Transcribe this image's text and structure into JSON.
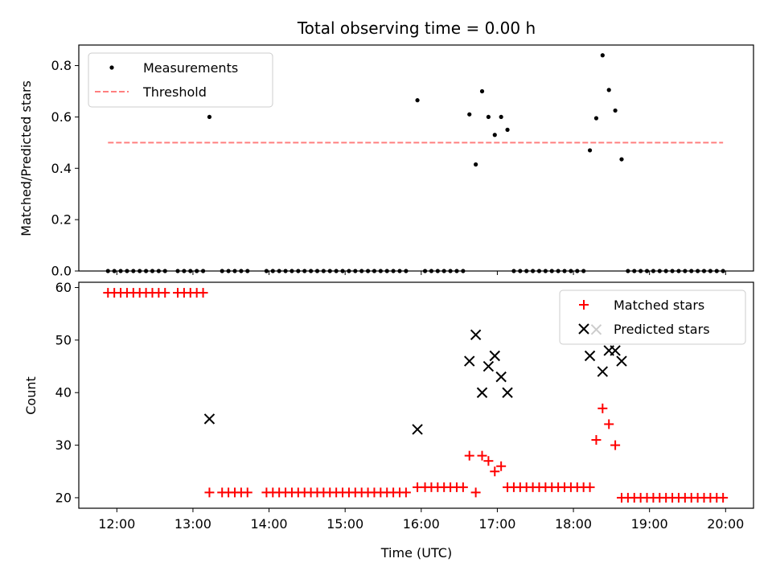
{
  "chart_data": [
    {
      "type": "scatter",
      "title": "Total observing time = 0.00 h",
      "xlabel": "",
      "ylabel": "Matched/Predicted stars",
      "xlim": [
        "11:30",
        "20:22"
      ],
      "ylim": [
        0,
        0.88
      ],
      "yticks": [
        "0.0",
        "0.2",
        "0.4",
        "0.6",
        "0.8"
      ],
      "legend_position": "top-left",
      "legend": {
        "measurements": "Measurements",
        "threshold": "Threshold"
      },
      "series": [
        {
          "name": "Measurements",
          "color": "#000000",
          "marker": "dot",
          "points": [
            [
              "11:53",
              0
            ],
            [
              "11:58",
              0
            ],
            [
              "12:03",
              0
            ],
            [
              "12:08",
              0
            ],
            [
              "12:13",
              0
            ],
            [
              "12:18",
              0
            ],
            [
              "12:23",
              0
            ],
            [
              "12:28",
              0
            ],
            [
              "12:33",
              0
            ],
            [
              "12:38",
              0
            ],
            [
              "12:48",
              0
            ],
            [
              "12:53",
              0
            ],
            [
              "12:58",
              0
            ],
            [
              "13:03",
              0
            ],
            [
              "13:08",
              0
            ],
            [
              "13:13",
              0.6
            ],
            [
              "13:23",
              0
            ],
            [
              "13:28",
              0
            ],
            [
              "13:33",
              0
            ],
            [
              "13:38",
              0
            ],
            [
              "13:43",
              0
            ],
            [
              "13:58",
              0
            ],
            [
              "14:03",
              0
            ],
            [
              "14:08",
              0
            ],
            [
              "14:13",
              0
            ],
            [
              "14:18",
              0
            ],
            [
              "14:23",
              0
            ],
            [
              "14:28",
              0
            ],
            [
              "14:33",
              0
            ],
            [
              "14:38",
              0
            ],
            [
              "14:43",
              0
            ],
            [
              "14:48",
              0
            ],
            [
              "14:53",
              0
            ],
            [
              "14:58",
              0
            ],
            [
              "15:03",
              0
            ],
            [
              "15:08",
              0
            ],
            [
              "15:13",
              0
            ],
            [
              "15:18",
              0
            ],
            [
              "15:23",
              0
            ],
            [
              "15:28",
              0
            ],
            [
              "15:33",
              0
            ],
            [
              "15:38",
              0
            ],
            [
              "15:43",
              0
            ],
            [
              "15:48",
              0
            ],
            [
              "15:57",
              0.665
            ],
            [
              "16:03",
              0
            ],
            [
              "16:08",
              0
            ],
            [
              "16:13",
              0
            ],
            [
              "16:18",
              0
            ],
            [
              "16:23",
              0
            ],
            [
              "16:28",
              0
            ],
            [
              "16:33",
              0
            ],
            [
              "16:38",
              0.61
            ],
            [
              "16:43",
              0.415
            ],
            [
              "16:48",
              0.7
            ],
            [
              "16:53",
              0.6
            ],
            [
              "16:58",
              0.53
            ],
            [
              "17:03",
              0.6
            ],
            [
              "17:08",
              0.55
            ],
            [
              "17:13",
              0
            ],
            [
              "17:18",
              0
            ],
            [
              "17:23",
              0
            ],
            [
              "17:28",
              0
            ],
            [
              "17:33",
              0
            ],
            [
              "17:38",
              0
            ],
            [
              "17:43",
              0
            ],
            [
              "17:48",
              0
            ],
            [
              "17:53",
              0
            ],
            [
              "17:58",
              0
            ],
            [
              "18:03",
              0
            ],
            [
              "18:08",
              0
            ],
            [
              "18:13",
              0.47
            ],
            [
              "18:18",
              0.595
            ],
            [
              "18:23",
              0.84
            ],
            [
              "18:28",
              0.705
            ],
            [
              "18:33",
              0.625
            ],
            [
              "18:38",
              0.435
            ],
            [
              "18:43",
              0
            ],
            [
              "18:48",
              0
            ],
            [
              "18:53",
              0
            ],
            [
              "18:58",
              0
            ],
            [
              "19:03",
              0
            ],
            [
              "19:08",
              0
            ],
            [
              "19:13",
              0
            ],
            [
              "19:18",
              0
            ],
            [
              "19:23",
              0
            ],
            [
              "19:28",
              0
            ],
            [
              "19:33",
              0
            ],
            [
              "19:38",
              0
            ],
            [
              "19:43",
              0
            ],
            [
              "19:48",
              0
            ],
            [
              "19:53",
              0
            ],
            [
              "19:58",
              0
            ]
          ]
        },
        {
          "name": "Threshold",
          "color": "#ff7f7f",
          "style": "dashed",
          "points": [
            [
              "11:53",
              0.5
            ],
            [
              "19:58",
              0.5
            ]
          ]
        }
      ]
    },
    {
      "type": "scatter",
      "title": "",
      "xlabel": "Time (UTC)",
      "ylabel": "Count",
      "xlim": [
        "11:30",
        "20:22"
      ],
      "xticks": [
        "12:00",
        "13:00",
        "14:00",
        "15:00",
        "16:00",
        "17:00",
        "18:00",
        "19:00",
        "20:00"
      ],
      "ylim": [
        18,
        61
      ],
      "yticks": [
        "20",
        "30",
        "40",
        "50",
        "60"
      ],
      "legend_position": "top-right",
      "legend": {
        "matched": "Matched stars",
        "predicted": "Predicted stars"
      },
      "series": [
        {
          "name": "Matched stars",
          "color": "#ff0000",
          "marker": "plus",
          "points": [
            [
              "11:53",
              59
            ],
            [
              "11:58",
              59
            ],
            [
              "12:03",
              59
            ],
            [
              "12:08",
              59
            ],
            [
              "12:13",
              59
            ],
            [
              "12:18",
              59
            ],
            [
              "12:23",
              59
            ],
            [
              "12:28",
              59
            ],
            [
              "12:33",
              59
            ],
            [
              "12:38",
              59
            ],
            [
              "12:48",
              59
            ],
            [
              "12:53",
              59
            ],
            [
              "12:58",
              59
            ],
            [
              "13:03",
              59
            ],
            [
              "13:08",
              59
            ],
            [
              "13:13",
              21
            ],
            [
              "13:23",
              21
            ],
            [
              "13:28",
              21
            ],
            [
              "13:33",
              21
            ],
            [
              "13:38",
              21
            ],
            [
              "13:43",
              21
            ],
            [
              "13:58",
              21
            ],
            [
              "14:03",
              21
            ],
            [
              "14:08",
              21
            ],
            [
              "14:13",
              21
            ],
            [
              "14:18",
              21
            ],
            [
              "14:23",
              21
            ],
            [
              "14:28",
              21
            ],
            [
              "14:33",
              21
            ],
            [
              "14:38",
              21
            ],
            [
              "14:43",
              21
            ],
            [
              "14:48",
              21
            ],
            [
              "14:53",
              21
            ],
            [
              "14:58",
              21
            ],
            [
              "15:03",
              21
            ],
            [
              "15:08",
              21
            ],
            [
              "15:13",
              21
            ],
            [
              "15:18",
              21
            ],
            [
              "15:23",
              21
            ],
            [
              "15:28",
              21
            ],
            [
              "15:33",
              21
            ],
            [
              "15:38",
              21
            ],
            [
              "15:43",
              21
            ],
            [
              "15:48",
              21
            ],
            [
              "15:57",
              22
            ],
            [
              "16:03",
              22
            ],
            [
              "16:08",
              22
            ],
            [
              "16:13",
              22
            ],
            [
              "16:18",
              22
            ],
            [
              "16:23",
              22
            ],
            [
              "16:28",
              22
            ],
            [
              "16:33",
              22
            ],
            [
              "16:38",
              28
            ],
            [
              "16:43",
              21
            ],
            [
              "16:48",
              28
            ],
            [
              "16:53",
              27
            ],
            [
              "16:58",
              25
            ],
            [
              "17:03",
              26
            ],
            [
              "17:08",
              22
            ],
            [
              "17:13",
              22
            ],
            [
              "17:18",
              22
            ],
            [
              "17:23",
              22
            ],
            [
              "17:28",
              22
            ],
            [
              "17:33",
              22
            ],
            [
              "17:38",
              22
            ],
            [
              "17:43",
              22
            ],
            [
              "17:48",
              22
            ],
            [
              "17:53",
              22
            ],
            [
              "17:58",
              22
            ],
            [
              "18:03",
              22
            ],
            [
              "18:08",
              22
            ],
            [
              "18:13",
              22
            ],
            [
              "18:18",
              31
            ],
            [
              "18:23",
              37
            ],
            [
              "18:28",
              34
            ],
            [
              "18:33",
              30
            ],
            [
              "18:38",
              20
            ],
            [
              "18:43",
              20
            ],
            [
              "18:48",
              20
            ],
            [
              "18:53",
              20
            ],
            [
              "18:58",
              20
            ],
            [
              "19:03",
              20
            ],
            [
              "19:08",
              20
            ],
            [
              "19:13",
              20
            ],
            [
              "19:18",
              20
            ],
            [
              "19:23",
              20
            ],
            [
              "19:28",
              20
            ],
            [
              "19:33",
              20
            ],
            [
              "19:38",
              20
            ],
            [
              "19:43",
              20
            ],
            [
              "19:48",
              20
            ],
            [
              "19:53",
              20
            ],
            [
              "19:58",
              20
            ]
          ]
        },
        {
          "name": "Predicted stars",
          "color": "#000000",
          "marker": "x",
          "points": [
            [
              "13:13",
              35
            ],
            [
              "15:57",
              33
            ],
            [
              "16:38",
              46
            ],
            [
              "16:43",
              51
            ],
            [
              "16:48",
              40
            ],
            [
              "16:53",
              45
            ],
            [
              "16:58",
              47
            ],
            [
              "17:03",
              43
            ],
            [
              "17:08",
              40
            ],
            [
              "18:13",
              47
            ],
            [
              "18:18",
              52
            ],
            [
              "18:23",
              44
            ],
            [
              "18:28",
              48
            ],
            [
              "18:33",
              48
            ],
            [
              "18:38",
              46
            ]
          ]
        }
      ]
    }
  ]
}
